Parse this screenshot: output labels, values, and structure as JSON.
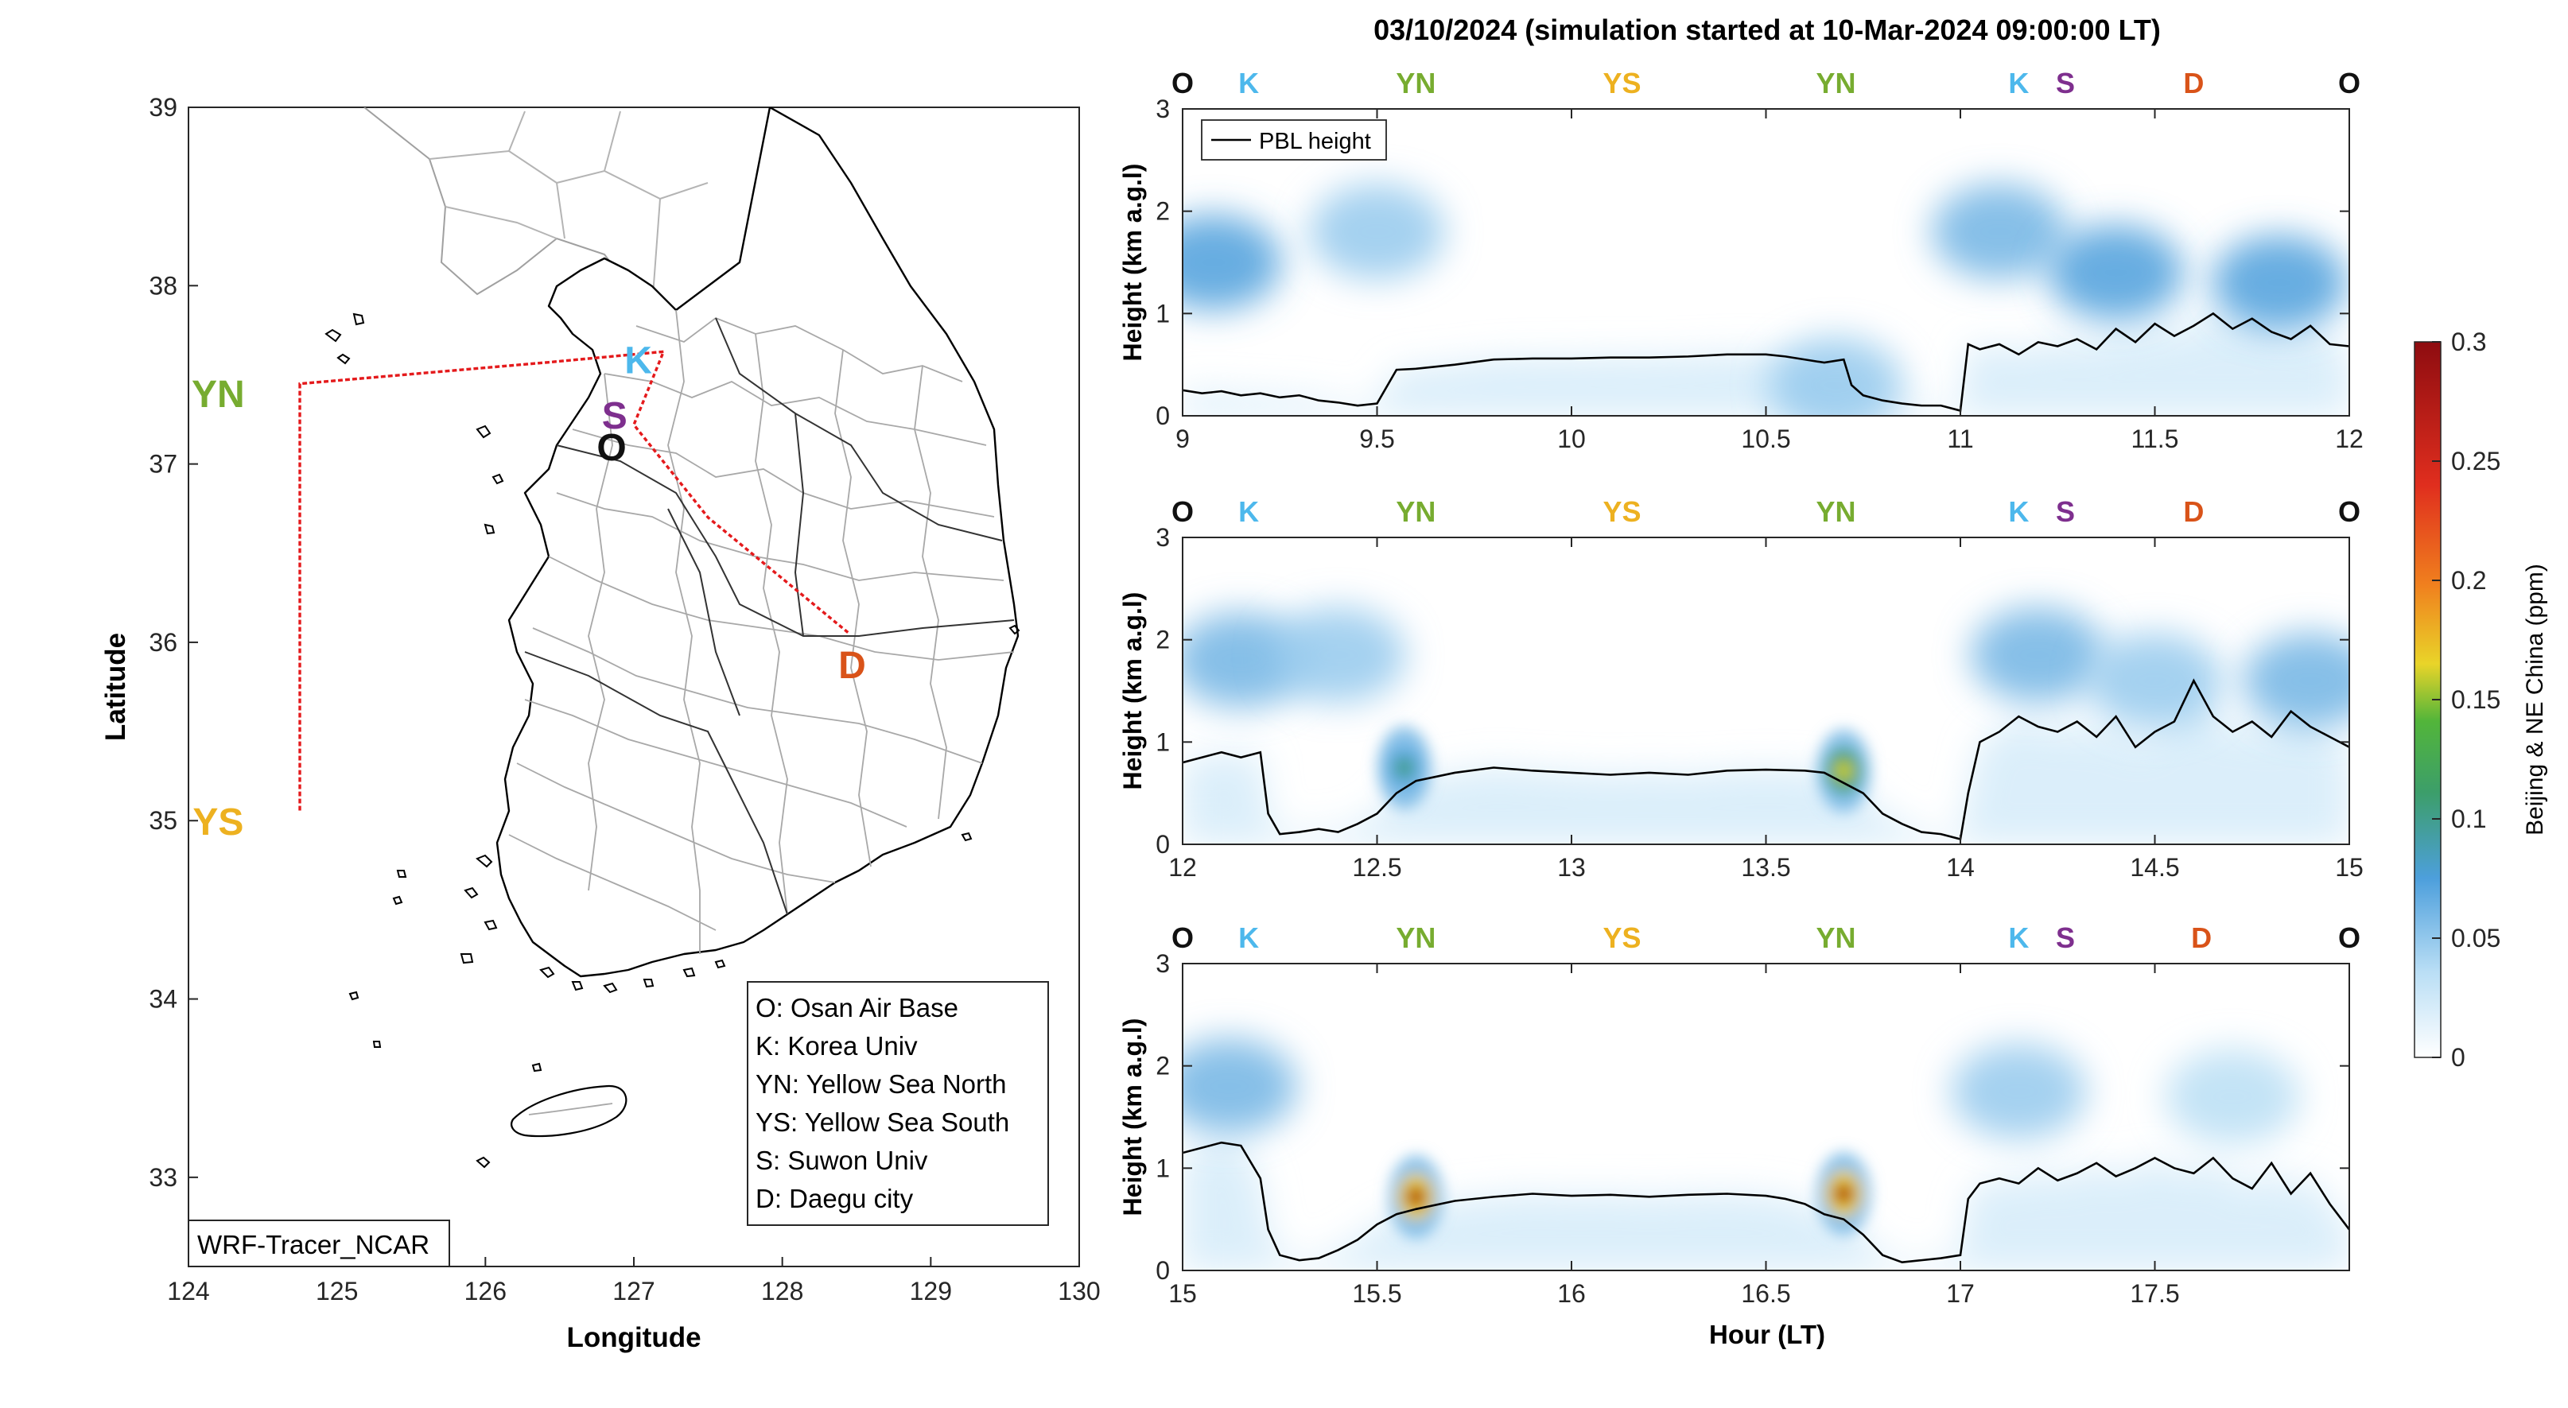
{
  "figure": {
    "title": "03/10/2024 (simulation started at 10-Mar-2024 09:00:00 LT)",
    "colors": {
      "O": "#111111",
      "K": "#4db8ec",
      "YN": "#77ac30",
      "YS": "#edb120",
      "S": "#7e2f8e",
      "D": "#d95319",
      "track": "#e41a1c",
      "pbl": "#000000"
    }
  },
  "map": {
    "xlabel": "Longitude",
    "ylabel": "Latitude",
    "xlim": [
      124,
      130
    ],
    "ylim": [
      32.5,
      39
    ],
    "xticks": [
      "124",
      "125",
      "126",
      "127",
      "128",
      "129",
      "130"
    ],
    "yticks": [
      "33",
      "34",
      "35",
      "36",
      "37",
      "38",
      "39"
    ],
    "model_label": "WRF-Tracer_NCAR",
    "sites": [
      {
        "code": "K",
        "lon": 127.03,
        "lat": 37.59
      },
      {
        "code": "YN",
        "lon": 124.2,
        "lat": 37.4
      },
      {
        "code": "S",
        "lon": 126.87,
        "lat": 37.28
      },
      {
        "code": "O",
        "lon": 126.85,
        "lat": 37.1
      },
      {
        "code": "D",
        "lon": 128.47,
        "lat": 35.88
      },
      {
        "code": "YS",
        "lon": 124.2,
        "lat": 35.0
      }
    ],
    "flight_track": [
      [
        127.2,
        37.63
      ],
      [
        126.42,
        37.57
      ],
      [
        124.75,
        37.45
      ],
      [
        124.75,
        35.05
      ],
      [
        124.75,
        37.45
      ],
      [
        126.42,
        37.57
      ],
      [
        127.2,
        37.63
      ],
      [
        127.0,
        37.22
      ],
      [
        127.5,
        36.7
      ],
      [
        128.45,
        36.05
      ],
      [
        127.5,
        36.7
      ],
      [
        127.0,
        37.22
      ],
      [
        127.2,
        37.63
      ]
    ],
    "legend": [
      "O: Osan Air Base",
      "K: Korea Univ",
      "YN: Yellow Sea North",
      "YS: Yellow Sea South",
      "S: Suwon Univ",
      "D: Daegu city"
    ]
  },
  "chart_data": [
    {
      "type": "heatmap",
      "ylabel": "Height (km a.g.l)",
      "xlim": [
        9,
        12
      ],
      "ylim": [
        0,
        3
      ],
      "xticks": [
        "9",
        "9.5",
        "10",
        "10.5",
        "11",
        "11.5",
        "12"
      ],
      "yticks": [
        "0",
        "1",
        "2",
        "3"
      ],
      "legend": [
        "PBL height"
      ],
      "site_labels": [
        {
          "code": "O",
          "hour": 9.0
        },
        {
          "code": "K",
          "hour": 9.17
        },
        {
          "code": "YN",
          "hour": 9.6
        },
        {
          "code": "YS",
          "hour": 10.13
        },
        {
          "code": "YN",
          "hour": 10.68
        },
        {
          "code": "K",
          "hour": 11.15
        },
        {
          "code": "S",
          "hour": 11.27
        },
        {
          "code": "D",
          "hour": 11.6
        },
        {
          "code": "O",
          "hour": 12.0
        }
      ],
      "pbl_height": {
        "hour": [
          9.0,
          9.05,
          9.1,
          9.15,
          9.2,
          9.25,
          9.3,
          9.35,
          9.4,
          9.45,
          9.5,
          9.55,
          9.6,
          9.7,
          9.8,
          9.9,
          10.0,
          10.1,
          10.2,
          10.3,
          10.4,
          10.5,
          10.55,
          10.6,
          10.65,
          10.7,
          10.72,
          10.75,
          10.8,
          10.85,
          10.9,
          10.95,
          11.0,
          11.02,
          11.05,
          11.1,
          11.15,
          11.2,
          11.25,
          11.3,
          11.35,
          11.4,
          11.45,
          11.5,
          11.55,
          11.6,
          11.65,
          11.7,
          11.75,
          11.8,
          11.85,
          11.9,
          11.95,
          12.0
        ],
        "km": [
          0.25,
          0.22,
          0.24,
          0.2,
          0.22,
          0.18,
          0.2,
          0.15,
          0.13,
          0.1,
          0.12,
          0.45,
          0.46,
          0.5,
          0.55,
          0.56,
          0.56,
          0.57,
          0.57,
          0.58,
          0.6,
          0.6,
          0.58,
          0.55,
          0.52,
          0.55,
          0.3,
          0.2,
          0.15,
          0.12,
          0.1,
          0.1,
          0.05,
          0.7,
          0.65,
          0.7,
          0.6,
          0.72,
          0.68,
          0.75,
          0.65,
          0.85,
          0.72,
          0.9,
          0.78,
          0.88,
          1.0,
          0.85,
          0.95,
          0.82,
          0.75,
          0.88,
          0.7,
          0.68
        ]
      },
      "plumes": [
        {
          "hour": 9.08,
          "km": 1.5,
          "ppm": 0.06
        },
        {
          "hour": 9.5,
          "km": 1.8,
          "ppm": 0.04
        },
        {
          "hour": 11.1,
          "km": 1.8,
          "ppm": 0.05
        },
        {
          "hour": 11.4,
          "km": 1.4,
          "ppm": 0.06
        },
        {
          "hour": 11.82,
          "km": 1.3,
          "ppm": 0.06
        },
        {
          "hour": 10.68,
          "km": 0.3,
          "ppm": 0.04
        }
      ]
    },
    {
      "type": "heatmap",
      "ylabel": "Height (km a.g.l)",
      "xlim": [
        12,
        15
      ],
      "ylim": [
        0,
        3
      ],
      "xticks": [
        "12",
        "12.5",
        "13",
        "13.5",
        "14",
        "14.5",
        "15"
      ],
      "yticks": [
        "0",
        "1",
        "2",
        "3"
      ],
      "site_labels": [
        {
          "code": "O",
          "hour": 12.0
        },
        {
          "code": "K",
          "hour": 12.17
        },
        {
          "code": "YN",
          "hour": 12.6
        },
        {
          "code": "YS",
          "hour": 13.13
        },
        {
          "code": "YN",
          "hour": 13.68
        },
        {
          "code": "K",
          "hour": 14.15
        },
        {
          "code": "S",
          "hour": 14.27
        },
        {
          "code": "D",
          "hour": 14.6
        },
        {
          "code": "O",
          "hour": 15.0
        }
      ],
      "pbl_height": {
        "hour": [
          12.0,
          12.05,
          12.1,
          12.15,
          12.2,
          12.22,
          12.25,
          12.3,
          12.35,
          12.4,
          12.45,
          12.5,
          12.55,
          12.6,
          12.7,
          12.8,
          12.9,
          13.0,
          13.1,
          13.2,
          13.3,
          13.4,
          13.5,
          13.6,
          13.65,
          13.7,
          13.75,
          13.8,
          13.85,
          13.9,
          13.95,
          14.0,
          14.02,
          14.05,
          14.1,
          14.15,
          14.2,
          14.25,
          14.3,
          14.35,
          14.4,
          14.45,
          14.5,
          14.55,
          14.6,
          14.65,
          14.7,
          14.75,
          14.8,
          14.85,
          14.9,
          14.95,
          15.0
        ],
        "km": [
          0.8,
          0.85,
          0.9,
          0.85,
          0.9,
          0.3,
          0.1,
          0.12,
          0.15,
          0.12,
          0.2,
          0.3,
          0.5,
          0.62,
          0.7,
          0.75,
          0.72,
          0.7,
          0.68,
          0.7,
          0.68,
          0.72,
          0.73,
          0.72,
          0.7,
          0.6,
          0.5,
          0.3,
          0.2,
          0.12,
          0.1,
          0.05,
          0.5,
          1.0,
          1.1,
          1.25,
          1.15,
          1.1,
          1.2,
          1.05,
          1.25,
          0.95,
          1.1,
          1.2,
          1.6,
          1.25,
          1.1,
          1.2,
          1.05,
          1.3,
          1.15,
          1.05,
          0.95
        ]
      },
      "plumes": [
        {
          "hour": 12.15,
          "km": 1.8,
          "ppm": 0.05
        },
        {
          "hour": 12.4,
          "km": 1.85,
          "ppm": 0.04
        },
        {
          "hour": 14.2,
          "km": 1.85,
          "ppm": 0.05
        },
        {
          "hour": 14.5,
          "km": 1.6,
          "ppm": 0.04
        },
        {
          "hour": 14.9,
          "km": 1.6,
          "ppm": 0.05
        },
        {
          "hour": 12.57,
          "km": 0.75,
          "ppm": 0.09
        },
        {
          "hour": 13.7,
          "km": 0.72,
          "ppm": 0.16
        }
      ]
    },
    {
      "type": "heatmap",
      "xlabel": "Hour (LT)",
      "ylabel": "Height (km a.g.l)",
      "xlim": [
        15,
        18
      ],
      "ylim": [
        0,
        3
      ],
      "xticks": [
        "15",
        "15.5",
        "16",
        "16.5",
        "17",
        "17.5"
      ],
      "yticks": [
        "0",
        "1",
        "2",
        "3"
      ],
      "site_labels": [
        {
          "code": "O",
          "hour": 15.0
        },
        {
          "code": "K",
          "hour": 15.17
        },
        {
          "code": "YN",
          "hour": 15.6
        },
        {
          "code": "YS",
          "hour": 16.13
        },
        {
          "code": "YN",
          "hour": 16.68
        },
        {
          "code": "K",
          "hour": 17.15
        },
        {
          "code": "S",
          "hour": 17.27
        },
        {
          "code": "D",
          "hour": 17.62
        },
        {
          "code": "O",
          "hour": 18.0
        }
      ],
      "pbl_height": {
        "hour": [
          15.0,
          15.05,
          15.1,
          15.15,
          15.2,
          15.22,
          15.25,
          15.3,
          15.35,
          15.4,
          15.45,
          15.5,
          15.55,
          15.6,
          15.7,
          15.8,
          15.9,
          16.0,
          16.1,
          16.2,
          16.3,
          16.4,
          16.5,
          16.55,
          16.6,
          16.65,
          16.7,
          16.75,
          16.8,
          16.85,
          16.9,
          16.95,
          17.0,
          17.02,
          17.05,
          17.1,
          17.15,
          17.2,
          17.25,
          17.3,
          17.35,
          17.4,
          17.45,
          17.5,
          17.55,
          17.6,
          17.65,
          17.7,
          17.75,
          17.8,
          17.85,
          17.9,
          17.95,
          18.0
        ],
        "km": [
          1.15,
          1.2,
          1.25,
          1.22,
          0.9,
          0.4,
          0.15,
          0.1,
          0.12,
          0.2,
          0.3,
          0.45,
          0.55,
          0.6,
          0.68,
          0.72,
          0.75,
          0.73,
          0.74,
          0.72,
          0.74,
          0.75,
          0.73,
          0.7,
          0.65,
          0.55,
          0.5,
          0.35,
          0.15,
          0.08,
          0.1,
          0.12,
          0.15,
          0.7,
          0.85,
          0.9,
          0.85,
          1.0,
          0.88,
          0.95,
          1.05,
          0.92,
          1.0,
          1.1,
          1.0,
          0.95,
          1.1,
          0.9,
          0.8,
          1.05,
          0.75,
          0.95,
          0.65,
          0.4
        ]
      },
      "plumes": [
        {
          "hour": 15.12,
          "km": 1.8,
          "ppm": 0.05
        },
        {
          "hour": 17.15,
          "km": 1.75,
          "ppm": 0.04
        },
        {
          "hour": 17.7,
          "km": 1.7,
          "ppm": 0.03
        },
        {
          "hour": 15.6,
          "km": 0.72,
          "ppm": 0.28
        },
        {
          "hour": 16.7,
          "km": 0.75,
          "ppm": 0.28
        }
      ]
    },
    {
      "type": "heatmap",
      "colorbar_label": "Beijing & NE China (ppm)",
      "clim": [
        0,
        0.3
      ],
      "ticks": [
        "0",
        "0.05",
        "0.1",
        "0.15",
        "0.2",
        "0.25",
        "0.3"
      ]
    }
  ]
}
